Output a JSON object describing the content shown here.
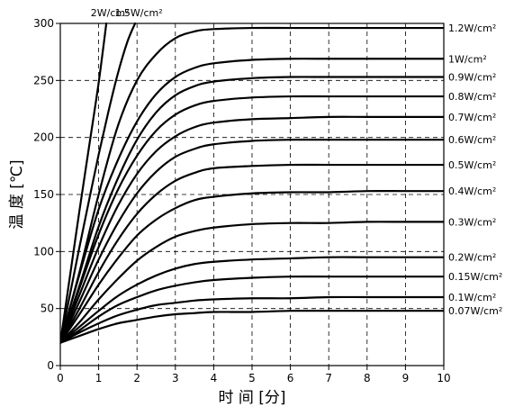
{
  "chart_data": {
    "type": "line",
    "xlabel": "时 间 [分]",
    "ylabel": "温 度 [℃]",
    "xlim": [
      0,
      10
    ],
    "ylim": [
      0,
      300
    ],
    "xticks": [
      0,
      1,
      2,
      3,
      4,
      5,
      6,
      7,
      8,
      9,
      10
    ],
    "yticks": [
      0,
      50,
      100,
      150,
      200,
      250,
      300
    ],
    "grid": "dashed",
    "series": [
      {
        "name": "2W/cm²",
        "label_position": "top",
        "x": [
          0,
          0.25,
          0.5,
          0.75,
          1.0,
          1.2
        ],
        "y": [
          20,
          78,
          136,
          192,
          248,
          300
        ]
      },
      {
        "name": "1.5W/cm²",
        "label_position": "top",
        "x": [
          0,
          0.25,
          0.5,
          0.75,
          1.0,
          1.25,
          1.5,
          1.75,
          1.95
        ],
        "y": [
          20,
          62,
          104,
          145,
          185,
          222,
          256,
          284,
          300
        ]
      },
      {
        "name": "1.2W/cm²",
        "label_position": "right",
        "x": [
          0,
          0.5,
          1,
          1.5,
          2,
          2.5,
          3,
          3.5,
          4,
          5,
          6,
          7,
          8,
          9,
          10
        ],
        "y": [
          20,
          82,
          150,
          210,
          250,
          273,
          287,
          293,
          295,
          296,
          296,
          296,
          296,
          296,
          296
        ]
      },
      {
        "name": "1W/cm²",
        "label_position": "right",
        "x": [
          0,
          0.5,
          1,
          1.5,
          2,
          2.5,
          3,
          3.5,
          4,
          5,
          6,
          7,
          8,
          9,
          10
        ],
        "y": [
          20,
          80,
          137,
          180,
          214,
          238,
          253,
          261,
          265,
          268,
          269,
          269,
          269,
          269,
          269
        ]
      },
      {
        "name": "0.9W/cm²",
        "label_position": "right",
        "x": [
          0,
          0.5,
          1,
          1.5,
          2,
          2.5,
          3,
          3.5,
          4,
          5,
          6,
          7,
          8,
          9,
          10
        ],
        "y": [
          20,
          70,
          122,
          164,
          198,
          222,
          237,
          245,
          249,
          252,
          253,
          253,
          253,
          253,
          253
        ]
      },
      {
        "name": "0.8W/cm²",
        "label_position": "right",
        "x": [
          0,
          0.5,
          1,
          1.5,
          2,
          2.5,
          3,
          3.5,
          4,
          5,
          6,
          7,
          8,
          9,
          10
        ],
        "y": [
          20,
          68,
          115,
          154,
          184,
          206,
          220,
          228,
          232,
          235,
          236,
          236,
          236,
          236,
          236
        ]
      },
      {
        "name": "0.7W/cm²",
        "label_position": "right",
        "x": [
          0,
          0.5,
          1,
          1.5,
          2,
          2.5,
          3,
          3.5,
          4,
          5,
          6,
          7,
          8,
          9,
          10
        ],
        "y": [
          20,
          62,
          104,
          140,
          168,
          188,
          201,
          209,
          213,
          216,
          217,
          218,
          218,
          218,
          218
        ]
      },
      {
        "name": "0.6W/cm²",
        "label_position": "right",
        "x": [
          0,
          0.5,
          1,
          1.5,
          2,
          2.5,
          3,
          3.5,
          4,
          5,
          6,
          7,
          8,
          9,
          10
        ],
        "y": [
          20,
          56,
          93,
          125,
          151,
          170,
          183,
          190,
          194,
          197,
          198,
          198,
          198,
          198,
          198
        ]
      },
      {
        "name": "0.5W/cm²",
        "label_position": "right",
        "x": [
          0,
          0.5,
          1,
          1.5,
          2,
          2.5,
          3,
          3.5,
          4,
          5,
          6,
          7,
          8,
          9,
          10
        ],
        "y": [
          20,
          50,
          82,
          110,
          133,
          150,
          162,
          169,
          173,
          175,
          176,
          176,
          176,
          176,
          176
        ]
      },
      {
        "name": "0.4W/cm²",
        "label_position": "right",
        "x": [
          0,
          0.5,
          1,
          1.5,
          2,
          2.5,
          3,
          3.5,
          4,
          5,
          6,
          7,
          8,
          9,
          10
        ],
        "y": [
          20,
          45,
          71,
          94,
          114,
          128,
          138,
          145,
          148,
          151,
          152,
          152,
          153,
          153,
          153
        ]
      },
      {
        "name": "0.3W/cm²",
        "label_position": "right",
        "x": [
          0,
          0.5,
          1,
          1.5,
          2,
          2.5,
          3,
          3.5,
          4,
          5,
          6,
          7,
          8,
          9,
          10
        ],
        "y": [
          20,
          38,
          58,
          76,
          92,
          104,
          113,
          118,
          121,
          124,
          125,
          125,
          126,
          126,
          126
        ]
      },
      {
        "name": "0.2W/cm²",
        "label_position": "right",
        "x": [
          0,
          0.5,
          1,
          1.5,
          2,
          2.5,
          3,
          3.5,
          4,
          5,
          6,
          7,
          8,
          9,
          10
        ],
        "y": [
          20,
          34,
          48,
          61,
          71,
          79,
          85,
          89,
          91,
          93,
          94,
          95,
          95,
          95,
          95
        ]
      },
      {
        "name": "0.15W/cm²",
        "label_position": "right",
        "x": [
          0,
          0.5,
          1,
          1.5,
          2,
          2.5,
          3,
          3.5,
          4,
          5,
          6,
          7,
          8,
          9,
          10
        ],
        "y": [
          20,
          31,
          43,
          53,
          60,
          66,
          70,
          73,
          75,
          77,
          78,
          78,
          78,
          78,
          78
        ]
      },
      {
        "name": "0.1W/cm²",
        "label_position": "right",
        "x": [
          0,
          0.5,
          1,
          1.5,
          2,
          2.5,
          3,
          3.5,
          4,
          5,
          6,
          7,
          8,
          9,
          10
        ],
        "y": [
          20,
          29,
          37,
          44,
          49,
          53,
          55,
          57,
          58,
          59,
          59,
          60,
          60,
          60,
          60
        ]
      },
      {
        "name": "0.07W/cm²",
        "label_position": "right",
        "x": [
          0,
          0.5,
          1,
          1.5,
          2,
          2.5,
          3,
          3.5,
          4,
          5,
          6,
          7,
          8,
          9,
          10
        ],
        "y": [
          20,
          26,
          32,
          37,
          40,
          43,
          45,
          46,
          47,
          47,
          48,
          48,
          48,
          48,
          48
        ]
      }
    ]
  }
}
